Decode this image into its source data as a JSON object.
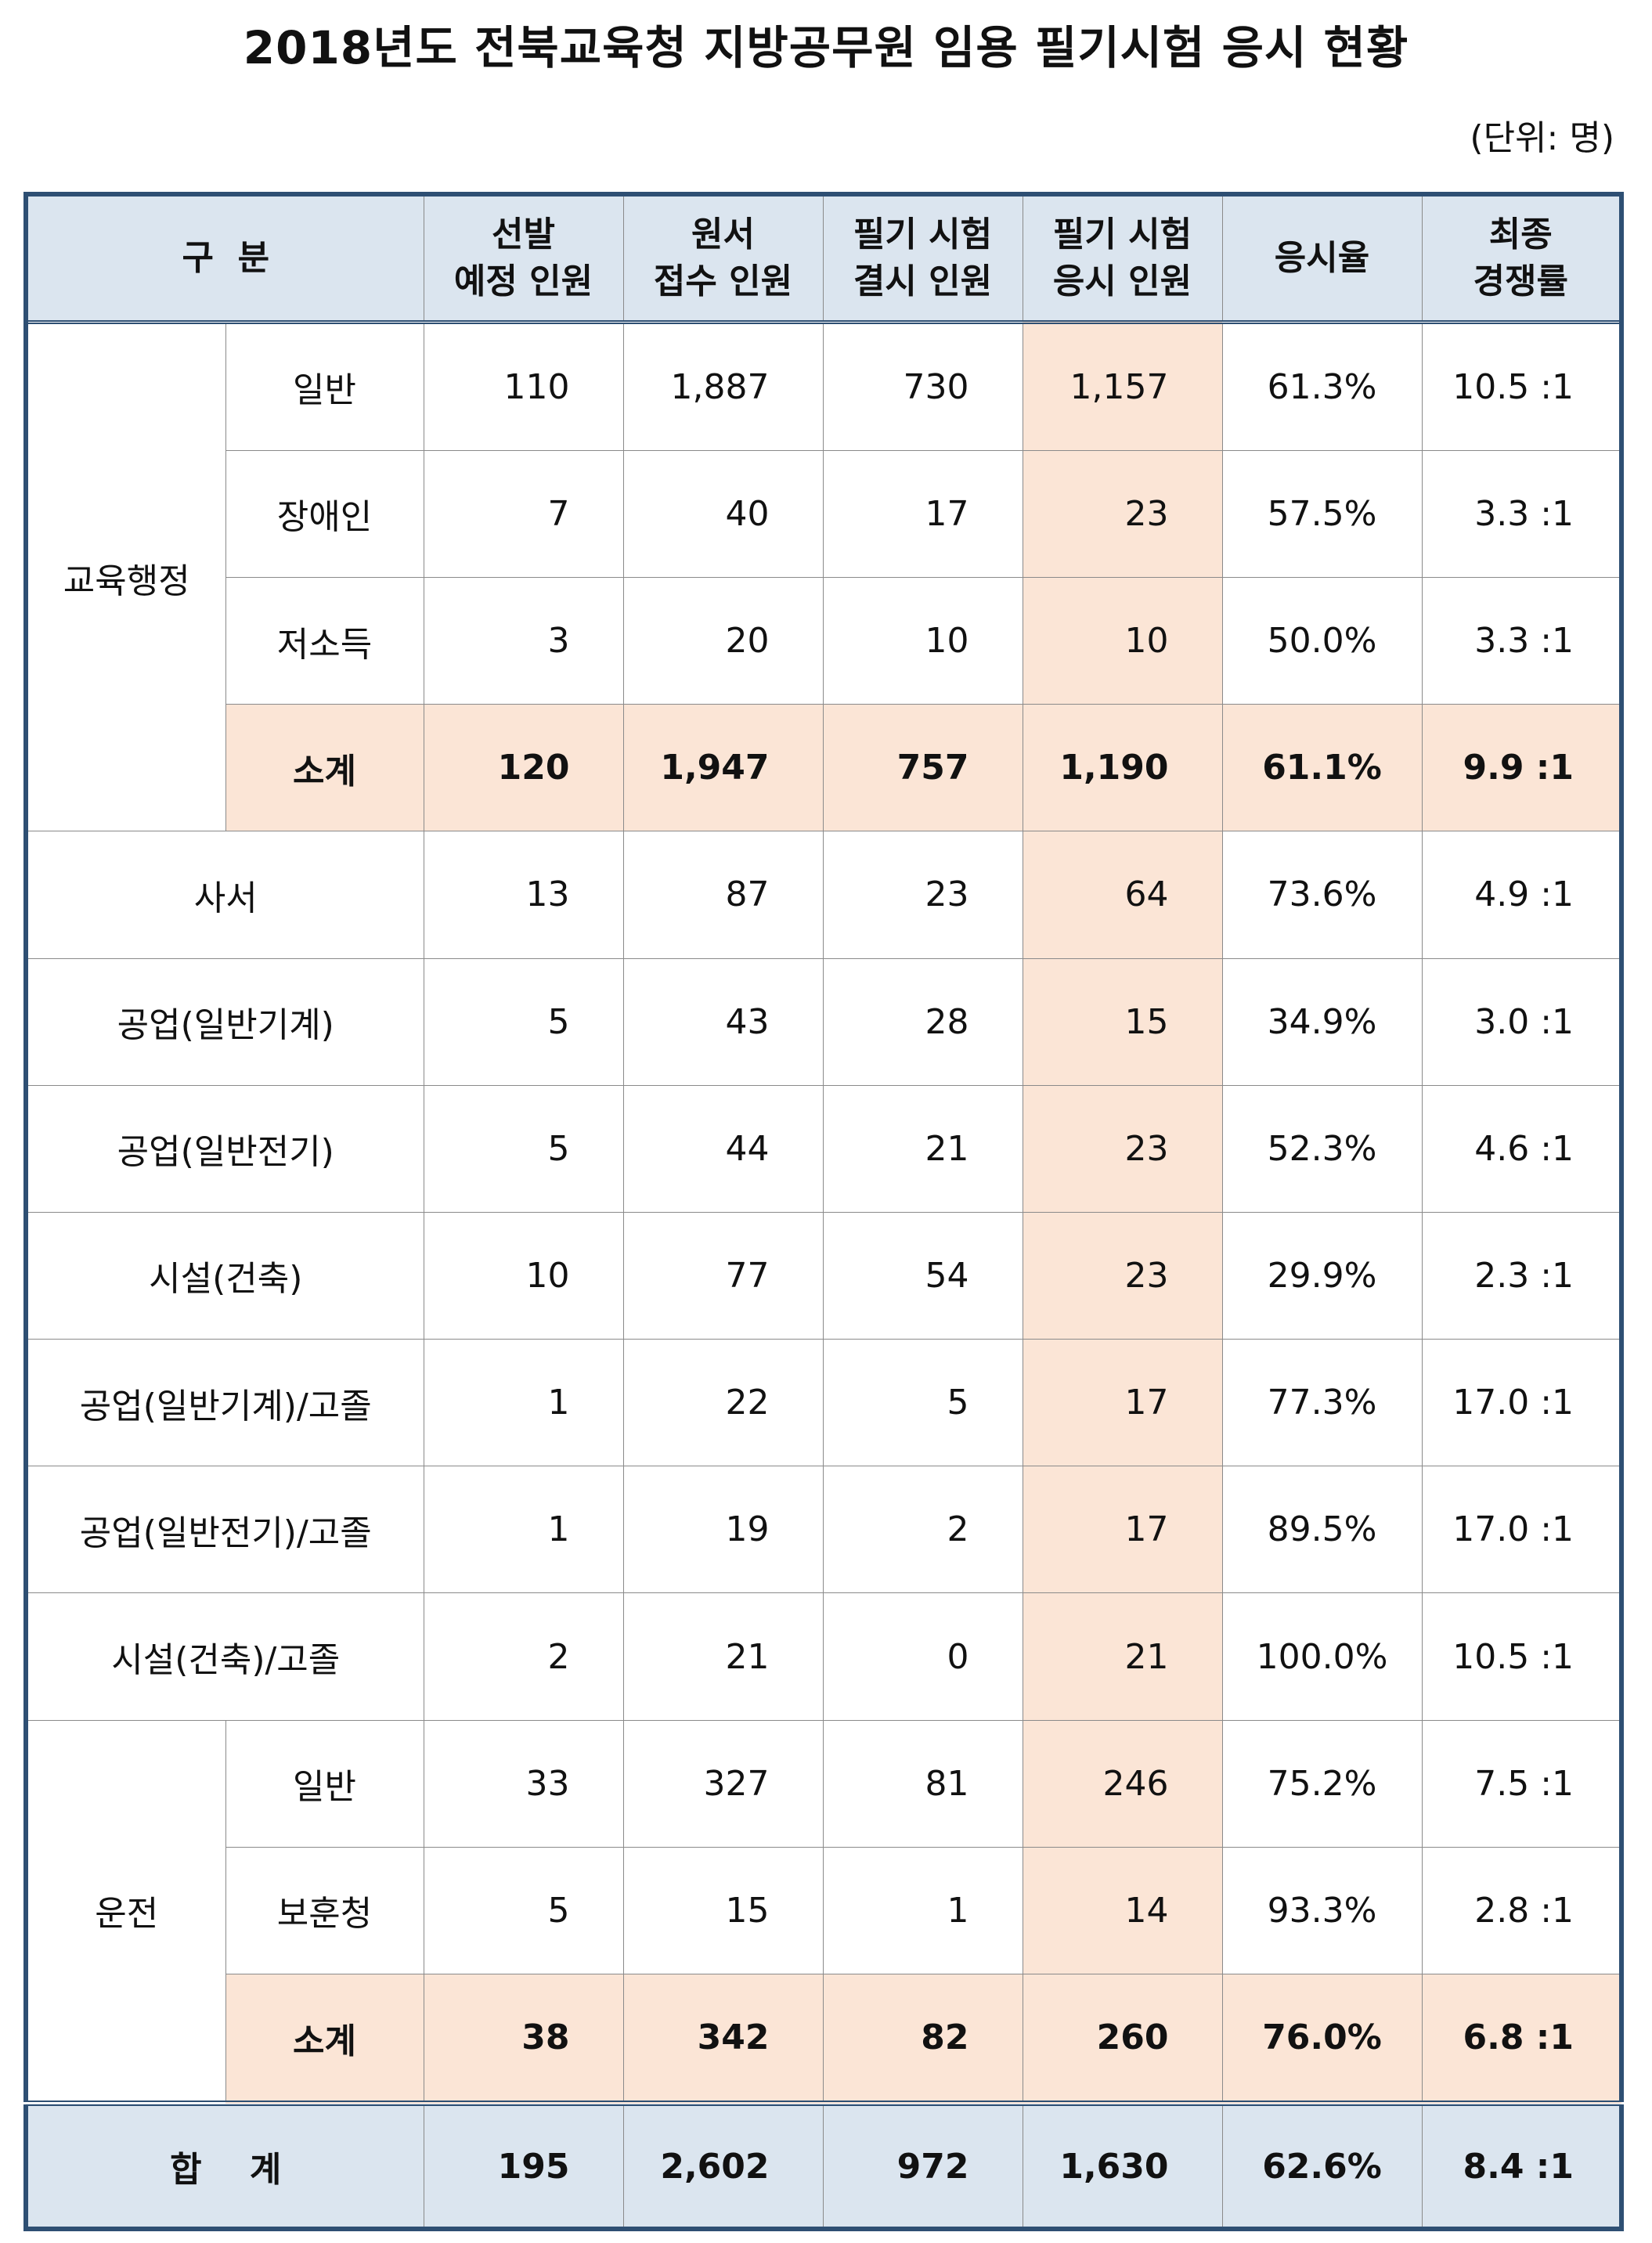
{
  "title": "2018년도 전북교육청 지방공무원 임용 필기시험 응시 현황",
  "unit": "(단위: 명)",
  "headers": {
    "category": "구  분",
    "planned": [
      "선발",
      "예정 인원"
    ],
    "applied": [
      "원서",
      "접수 인원"
    ],
    "absent": [
      "필기 시험",
      "결시 인원"
    ],
    "tested": [
      "필기 시험",
      "응시 인원"
    ],
    "rate": "응시율",
    "competition": [
      "최종",
      "경쟁률"
    ]
  },
  "groups": {
    "admin": {
      "name": "교육행정",
      "rows": [
        {
          "sub": "일반",
          "planned": "110",
          "applied": "1,887",
          "absent": "730",
          "tested": "1,157",
          "rate": "61.3%",
          "competition": "10.5 :1"
        },
        {
          "sub": "장애인",
          "planned": "7",
          "applied": "40",
          "absent": "17",
          "tested": "23",
          "rate": "57.5%",
          "competition": "3.3 :1"
        },
        {
          "sub": "저소득",
          "planned": "3",
          "applied": "20",
          "absent": "10",
          "tested": "10",
          "rate": "50.0%",
          "competition": "3.3 :1"
        }
      ],
      "subtotal": {
        "sub": "소계",
        "planned": "120",
        "applied": "1,947",
        "absent": "757",
        "tested": "1,190",
        "rate": "61.1%",
        "competition": "9.9 :1"
      }
    },
    "single": [
      {
        "name": "사서",
        "planned": "13",
        "applied": "87",
        "absent": "23",
        "tested": "64",
        "rate": "73.6%",
        "competition": "4.9 :1"
      },
      {
        "name": "공업(일반기계)",
        "planned": "5",
        "applied": "43",
        "absent": "28",
        "tested": "15",
        "rate": "34.9%",
        "competition": "3.0 :1"
      },
      {
        "name": "공업(일반전기)",
        "planned": "5",
        "applied": "44",
        "absent": "21",
        "tested": "23",
        "rate": "52.3%",
        "competition": "4.6 :1"
      },
      {
        "name": "시설(건축)",
        "planned": "10",
        "applied": "77",
        "absent": "54",
        "tested": "23",
        "rate": "29.9%",
        "competition": "2.3 :1"
      },
      {
        "name": "공업(일반기계)/고졸",
        "planned": "1",
        "applied": "22",
        "absent": "5",
        "tested": "17",
        "rate": "77.3%",
        "competition": "17.0 :1"
      },
      {
        "name": "공업(일반전기)/고졸",
        "planned": "1",
        "applied": "19",
        "absent": "2",
        "tested": "17",
        "rate": "89.5%",
        "competition": "17.0 :1"
      },
      {
        "name": "시설(건축)/고졸",
        "planned": "2",
        "applied": "21",
        "absent": "0",
        "tested": "21",
        "rate": "100.0%",
        "competition": "10.5 :1"
      }
    ],
    "driving": {
      "name": "운전",
      "rows": [
        {
          "sub": "일반",
          "planned": "33",
          "applied": "327",
          "absent": "81",
          "tested": "246",
          "rate": "75.2%",
          "competition": "7.5 :1"
        },
        {
          "sub": "보훈청",
          "planned": "5",
          "applied": "15",
          "absent": "1",
          "tested": "14",
          "rate": "93.3%",
          "competition": "2.8 :1"
        }
      ],
      "subtotal": {
        "sub": "소계",
        "planned": "38",
        "applied": "342",
        "absent": "82",
        "tested": "260",
        "rate": "76.0%",
        "competition": "6.8 :1"
      }
    }
  },
  "total": {
    "label": "합    계",
    "planned": "195",
    "applied": "2,602",
    "absent": "972",
    "tested": "1,630",
    "rate": "62.6%",
    "competition": "8.4 :1"
  },
  "colors": {
    "border": "#2e4f73",
    "header_bg": "#dbe5ef",
    "highlight": "#fbe5d6"
  }
}
